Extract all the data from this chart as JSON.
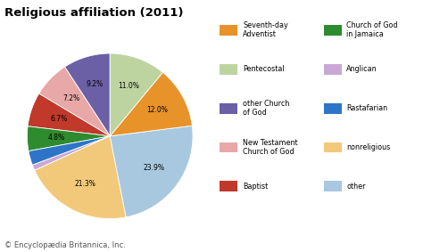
{
  "title": "Religious affiliation (2011)",
  "footnote": "© Encyclopædia Britannica, Inc.",
  "cw_slices": [
    {
      "label": "Pentecostal",
      "value": 11.0,
      "color": "#BED4A0"
    },
    {
      "label": "Seventh-day Adventist",
      "value": 12.0,
      "color": "#E8922A"
    },
    {
      "label": "other",
      "value": 23.9,
      "color": "#A8C8E0"
    },
    {
      "label": "nonreligious",
      "value": 21.3,
      "color": "#F2C97A"
    },
    {
      "label": "Anglican",
      "value": 1.1,
      "color": "#C9A8D5"
    },
    {
      "label": "Rastafarian",
      "value": 2.8,
      "color": "#2E75C8"
    },
    {
      "label": "Church of God in Jamaica",
      "value": 4.8,
      "color": "#2E8B2E"
    },
    {
      "label": "Baptist",
      "value": 6.7,
      "color": "#C0392B"
    },
    {
      "label": "New Testament Church of God",
      "value": 7.2,
      "color": "#E8A8A8"
    },
    {
      "label": "other Church of God",
      "value": 9.2,
      "color": "#6B5FA5"
    }
  ],
  "legend_col1": [
    {
      "label": "Seventh-day\nAdventist",
      "color": "#E8922A"
    },
    {
      "label": "Pentecostal",
      "color": "#BED4A0"
    },
    {
      "label": "other Church\nof God",
      "color": "#6B5FA5"
    },
    {
      "label": "New Testament\nChurch of God",
      "color": "#E8A8A8"
    },
    {
      "label": "Baptist",
      "color": "#C0392B"
    }
  ],
  "legend_col2": [
    {
      "label": "Church of God\nin Jamaica",
      "color": "#2E8B2E"
    },
    {
      "label": "Anglican",
      "color": "#C9A8D5"
    },
    {
      "label": "Rastafarian",
      "color": "#2E75C8"
    },
    {
      "label": "nonreligious",
      "color": "#F2C97A"
    },
    {
      "label": "other",
      "color": "#A8C8E0"
    }
  ],
  "background_color": "#FFFFFF",
  "title_fontsize": 9.5,
  "label_fontsize": 5.5,
  "legend_fontsize": 5.8,
  "footnote_fontsize": 6.0
}
